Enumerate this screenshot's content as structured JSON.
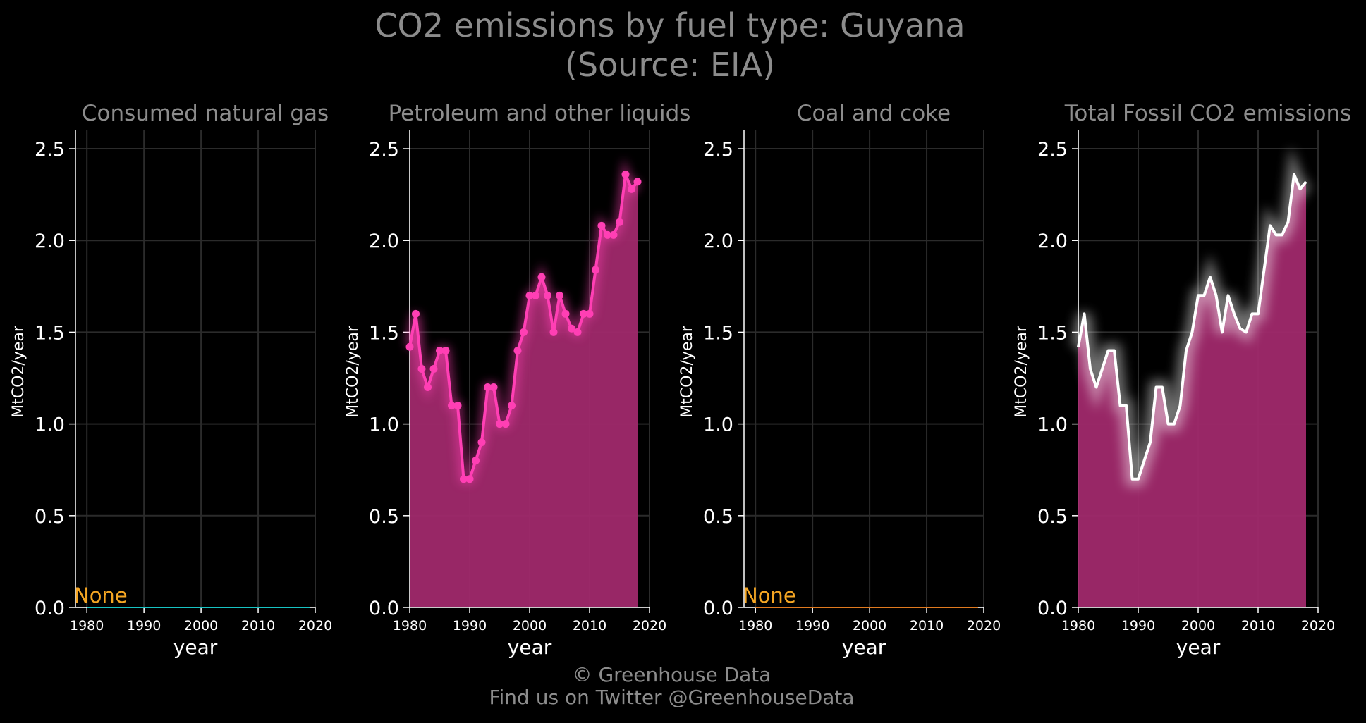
{
  "header": {
    "title_line1": "CO2 emissions by fuel type: Guyana",
    "title_line2": "(Source: EIA)"
  },
  "footer": {
    "line1": "© Greenhouse Data",
    "line2": "Find us on Twitter @GreenhouseData"
  },
  "colors": {
    "background": "#000000",
    "grid": "#2b2b2b",
    "text_muted": "#8c8c8c",
    "none_label": "#f5a623",
    "natural_gas": "#17c3c3",
    "petroleum": "#ff3fb4",
    "petroleum_fill": "#a0296b",
    "coal": "#e07a1f",
    "total_line": "#ffffff",
    "total_fill": "#a0296b"
  },
  "chart_data": [
    {
      "type": "area",
      "title": "Consumed natural gas",
      "xlabel": "year",
      "ylabel": "MtCO2/year",
      "xlim": [
        1978,
        2020
      ],
      "ylim": [
        0,
        2.6
      ],
      "xticks": [
        1980,
        1990,
        2000,
        2010,
        2020
      ],
      "yticks": [
        "0.0",
        "0.5",
        "1.0",
        "1.5",
        "2.0",
        "2.5"
      ],
      "grid": true,
      "annotation": "None",
      "series": [
        {
          "x": [
            1980,
            2019
          ],
          "y": [
            0,
            0
          ]
        }
      ]
    },
    {
      "type": "area",
      "title": "Petroleum and other liquids",
      "xlabel": "year",
      "ylabel": "MtCO2/year",
      "xlim": [
        1980,
        2020
      ],
      "ylim": [
        0,
        2.6
      ],
      "xticks": [
        1980,
        1990,
        2000,
        2010,
        2020
      ],
      "yticks": [
        "0.0",
        "0.5",
        "1.0",
        "1.5",
        "2.0",
        "2.5"
      ],
      "grid": true,
      "annotation": "",
      "series": [
        {
          "x": [
            1980,
            1981,
            1982,
            1983,
            1984,
            1985,
            1986,
            1987,
            1988,
            1989,
            1990,
            1991,
            1992,
            1993,
            1994,
            1995,
            1996,
            1997,
            1998,
            1999,
            2000,
            2001,
            2002,
            2003,
            2004,
            2005,
            2006,
            2007,
            2008,
            2009,
            2010,
            2011,
            2012,
            2013,
            2014,
            2015,
            2016,
            2017,
            2018
          ],
          "y": [
            1.42,
            1.6,
            1.3,
            1.2,
            1.3,
            1.4,
            1.4,
            1.1,
            1.1,
            0.7,
            0.7,
            0.8,
            0.9,
            1.2,
            1.2,
            1.0,
            1.0,
            1.1,
            1.4,
            1.5,
            1.7,
            1.7,
            1.8,
            1.7,
            1.5,
            1.7,
            1.6,
            1.52,
            1.5,
            1.6,
            1.6,
            1.84,
            2.08,
            2.03,
            2.03,
            2.1,
            2.36,
            2.28,
            2.32
          ]
        }
      ]
    },
    {
      "type": "area",
      "title": "Coal and coke",
      "xlabel": "year",
      "ylabel": "MtCO2/year",
      "xlim": [
        1978,
        2020
      ],
      "ylim": [
        0,
        2.6
      ],
      "xticks": [
        1980,
        1990,
        2000,
        2010,
        2020
      ],
      "yticks": [
        "0.0",
        "0.5",
        "1.0",
        "1.5",
        "2.0",
        "2.5"
      ],
      "grid": true,
      "annotation": "None",
      "series": [
        {
          "x": [
            1980,
            2019
          ],
          "y": [
            0,
            0
          ]
        }
      ]
    },
    {
      "type": "area",
      "title": "Total Fossil CO2 emissions",
      "xlabel": "year",
      "ylabel": "MtCO2/year",
      "xlim": [
        1980,
        2020
      ],
      "ylim": [
        0,
        2.6
      ],
      "xticks": [
        1980,
        1990,
        2000,
        2010,
        2020
      ],
      "yticks": [
        "0.0",
        "0.5",
        "1.0",
        "1.5",
        "2.0",
        "2.5"
      ],
      "grid": true,
      "annotation": "",
      "series": [
        {
          "x": [
            1980,
            1981,
            1982,
            1983,
            1984,
            1985,
            1986,
            1987,
            1988,
            1989,
            1990,
            1991,
            1992,
            1993,
            1994,
            1995,
            1996,
            1997,
            1998,
            1999,
            2000,
            2001,
            2002,
            2003,
            2004,
            2005,
            2006,
            2007,
            2008,
            2009,
            2010,
            2011,
            2012,
            2013,
            2014,
            2015,
            2016,
            2017,
            2018
          ],
          "y": [
            1.42,
            1.6,
            1.3,
            1.2,
            1.3,
            1.4,
            1.4,
            1.1,
            1.1,
            0.7,
            0.7,
            0.8,
            0.9,
            1.2,
            1.2,
            1.0,
            1.0,
            1.1,
            1.4,
            1.5,
            1.7,
            1.7,
            1.8,
            1.7,
            1.5,
            1.7,
            1.6,
            1.52,
            1.5,
            1.6,
            1.6,
            1.84,
            2.08,
            2.03,
            2.03,
            2.1,
            2.36,
            2.28,
            2.32
          ]
        }
      ]
    }
  ]
}
